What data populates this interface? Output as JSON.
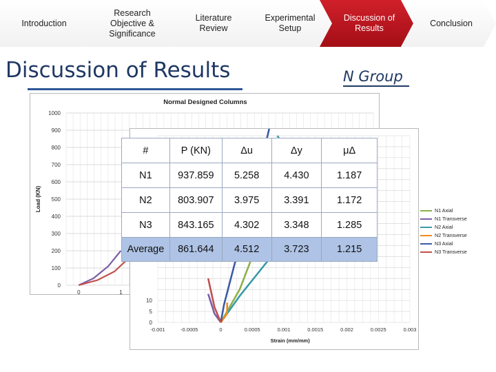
{
  "nav": [
    {
      "label": "Introduction",
      "active": false
    },
    {
      "label": "Research Objective & Significance",
      "active": false
    },
    {
      "label": "Literature Review",
      "active": false
    },
    {
      "label": "Experimental Setup",
      "active": false
    },
    {
      "label": "Discussion of Results",
      "active": true
    },
    {
      "label": "Conclusion",
      "active": false
    }
  ],
  "page_title": "Discussion of Results",
  "group_label": "N Group",
  "colors": {
    "title": "#1f3864",
    "nav_active": "#c0151e",
    "table_average_row": "#aec3e5",
    "n1_axial": "#8db04a",
    "n1_transverse": "#7b5ea7",
    "n2_axial": "#3a9aa8",
    "n2_transverse": "#f08a1c",
    "n3_axial": "#3b5ba5",
    "n3_transverse": "#c0504d"
  },
  "table": {
    "headers": [
      "#",
      "P (KN)",
      "Δu",
      "Δy",
      "μΔ"
    ],
    "rows": [
      [
        "N1",
        "937.859",
        "5.258",
        "4.430",
        "1.187"
      ],
      [
        "N2",
        "803.907",
        "3.975",
        "3.391",
        "1.172"
      ],
      [
        "N3",
        "843.165",
        "4.302",
        "3.348",
        "1.285"
      ],
      [
        "Average",
        "861.644",
        "4.512",
        "3.723",
        "1.215"
      ]
    ]
  },
  "chart_data": [
    {
      "type": "line",
      "title": "Normal Designed Columns",
      "ylabel": "Load (KN)",
      "xlabel": "",
      "ylim": [
        0,
        1000
      ],
      "y_ticks": [
        "0",
        "100",
        "200",
        "300",
        "400",
        "500",
        "600",
        "700",
        "800",
        "900",
        "1000"
      ],
      "x_ticks": [
        "0",
        "1"
      ],
      "grid": true,
      "series": [
        {
          "name": "N1 Transverse",
          "points": [
            [
              0,
              0
            ],
            [
              0.35,
              40
            ],
            [
              0.7,
              110
            ],
            [
              1.0,
              200
            ]
          ]
        },
        {
          "name": "N3 Transverse",
          "points": [
            [
              0,
              0
            ],
            [
              0.45,
              30
            ],
            [
              0.85,
              80
            ],
            [
              1.2,
              160
            ]
          ]
        }
      ]
    },
    {
      "type": "line",
      "xlabel": "Strain (mm/mm)",
      "ylabel": "",
      "xlim": [
        -0.001,
        0.003
      ],
      "x_ticks": [
        "-0.001",
        "-0.0005",
        "0",
        "0.0005",
        "0.001",
        "0.0015",
        "0.002",
        "0.0025",
        "0.003"
      ],
      "y_ticks": [
        "0",
        "5",
        "10"
      ],
      "grid": true,
      "legend_position": "right",
      "series": [
        {
          "name": "N1 Axial",
          "points": [
            [
              0,
              0
            ],
            [
              0.0001,
              5
            ],
            [
              0.0003,
              15
            ],
            [
              0.0005,
              30
            ]
          ]
        },
        {
          "name": "N1 Transverse",
          "points": [
            [
              0,
              0
            ],
            [
              -0.0001,
              4
            ],
            [
              -0.0002,
              13
            ]
          ]
        },
        {
          "name": "N2 Axial",
          "points": [
            [
              0,
              0
            ],
            [
              0.0003,
              12
            ],
            [
              0.0008,
              30
            ],
            [
              0.0011,
              55
            ],
            [
              0.0014,
              60
            ],
            [
              0.0012,
              70
            ],
            [
              0.0009,
              85
            ]
          ]
        },
        {
          "name": "N2 Transverse",
          "points": [
            [
              0,
              0
            ],
            [
              0.0001,
              4
            ],
            [
              0.0001,
              9
            ]
          ]
        },
        {
          "name": "N3 Axial",
          "points": [
            [
              0,
              0
            ],
            [
              5e-05,
              8
            ],
            [
              0.00025,
              30
            ],
            [
              0.0007,
              80
            ],
            [
              0.0008,
              92
            ]
          ]
        },
        {
          "name": "N3 Transverse",
          "points": [
            [
              0,
              0
            ],
            [
              -0.0001,
              7
            ],
            [
              -0.0002,
              20
            ]
          ]
        }
      ]
    }
  ]
}
